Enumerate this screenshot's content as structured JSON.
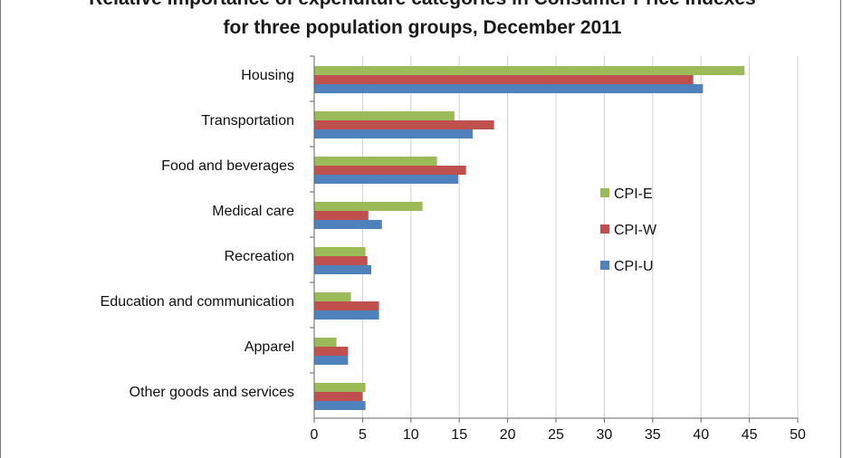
{
  "chart_data": {
    "type": "bar",
    "orientation": "horizontal",
    "title_lines": [
      "Relative importance of expenditure categories in Consumer Price Indexes",
      "for three population groups, December 2011"
    ],
    "categories": [
      "Housing",
      "Transportation",
      "Food and beverages",
      "Medical care",
      "Recreation",
      "Education and communication",
      "Apparel",
      "Other goods and services"
    ],
    "series": [
      {
        "name": "CPI-E",
        "color": "#9BBB59",
        "values": [
          44.5,
          14.5,
          12.7,
          11.2,
          5.3,
          3.8,
          2.3,
          5.3
        ]
      },
      {
        "name": "CPI-W",
        "color": "#C0504D",
        "values": [
          39.2,
          18.6,
          15.7,
          5.6,
          5.5,
          6.7,
          3.5,
          5.0
        ]
      },
      {
        "name": "CPI-U",
        "color": "#4F81BD",
        "values": [
          40.2,
          16.4,
          14.9,
          7.0,
          5.9,
          6.7,
          3.5,
          5.3
        ]
      }
    ],
    "xlim": [
      0,
      50
    ],
    "xticks": [
      0,
      5,
      10,
      15,
      20,
      25,
      30,
      35,
      40,
      45,
      50
    ],
    "grid": true,
    "legend_position": "right"
  }
}
